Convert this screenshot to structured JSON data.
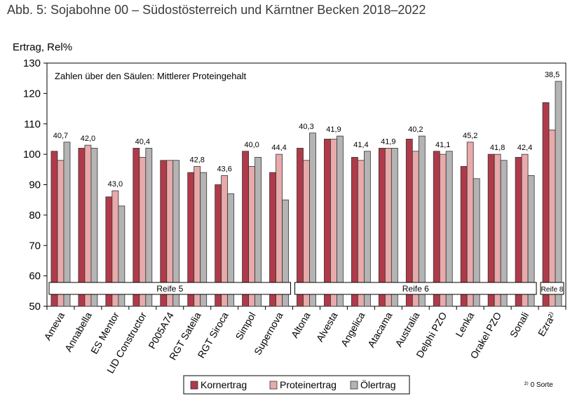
{
  "title": "Abb. 5: Sojabohne 00 – Südostösterreich und Kärntner Becken 2018–2022",
  "footnote": "²⁾ 0 Sorte",
  "chart_data": {
    "type": "bar",
    "ylabel": "Ertrag, Rel%",
    "ylim": [
      50,
      130
    ],
    "yticks": [
      50,
      60,
      70,
      80,
      90,
      100,
      110,
      120,
      130
    ],
    "annotation": "Zahlen über den Säulen: Mittlerer Proteingehalt",
    "legend_position": "bottom",
    "grid": false,
    "categories": [
      "Ameva",
      "Annabella",
      "ES Mentor",
      "LID Constructor",
      "P005A74",
      "RGT Satelia",
      "RGT Siroca",
      "Simpol",
      "Supernova",
      "Altona",
      "Alvesta",
      "Angelica",
      "Atacama",
      "Australia",
      "Delphi PZO",
      "Lenka",
      "Orakel PZO",
      "Sonali",
      "Ezra²⁾"
    ],
    "series": [
      {
        "name": "Kornertrag",
        "color": "#b03a4a",
        "values": [
          101,
          102,
          86,
          102,
          98,
          94,
          90,
          101,
          94,
          102,
          105,
          99,
          102,
          105,
          101,
          96,
          100,
          99,
          117
        ]
      },
      {
        "name": "Proteinertrag",
        "color": "#e8aaaa",
        "values": [
          98,
          103,
          88,
          99,
          98,
          96,
          93,
          96,
          100,
          98,
          105,
          98,
          102,
          101,
          100,
          104,
          100,
          100,
          108
        ]
      },
      {
        "name": "Ölertrag",
        "color": "#b4b4b4",
        "values": [
          104,
          102,
          83,
          102,
          98,
          94,
          87,
          99,
          85,
          107,
          106,
          101,
          102,
          106,
          101,
          92,
          98,
          93,
          124
        ]
      }
    ],
    "protein_labels": [
      "40,7",
      "42,0",
      "43,0",
      "40,4",
      "",
      "42,8",
      "43,6",
      "40,0",
      "44,4",
      "40,3",
      "41,9",
      "41,4",
      "41,9",
      "40,2",
      "41,1",
      "45,2",
      "41,8",
      "42,4",
      "38,5"
    ],
    "maturity_groups": [
      {
        "label": "Reife 5",
        "from": 0,
        "to": 8
      },
      {
        "label": "Reife 6",
        "from": 9,
        "to": 17
      },
      {
        "label": "Reife 8",
        "from": 18,
        "to": 18
      }
    ]
  }
}
